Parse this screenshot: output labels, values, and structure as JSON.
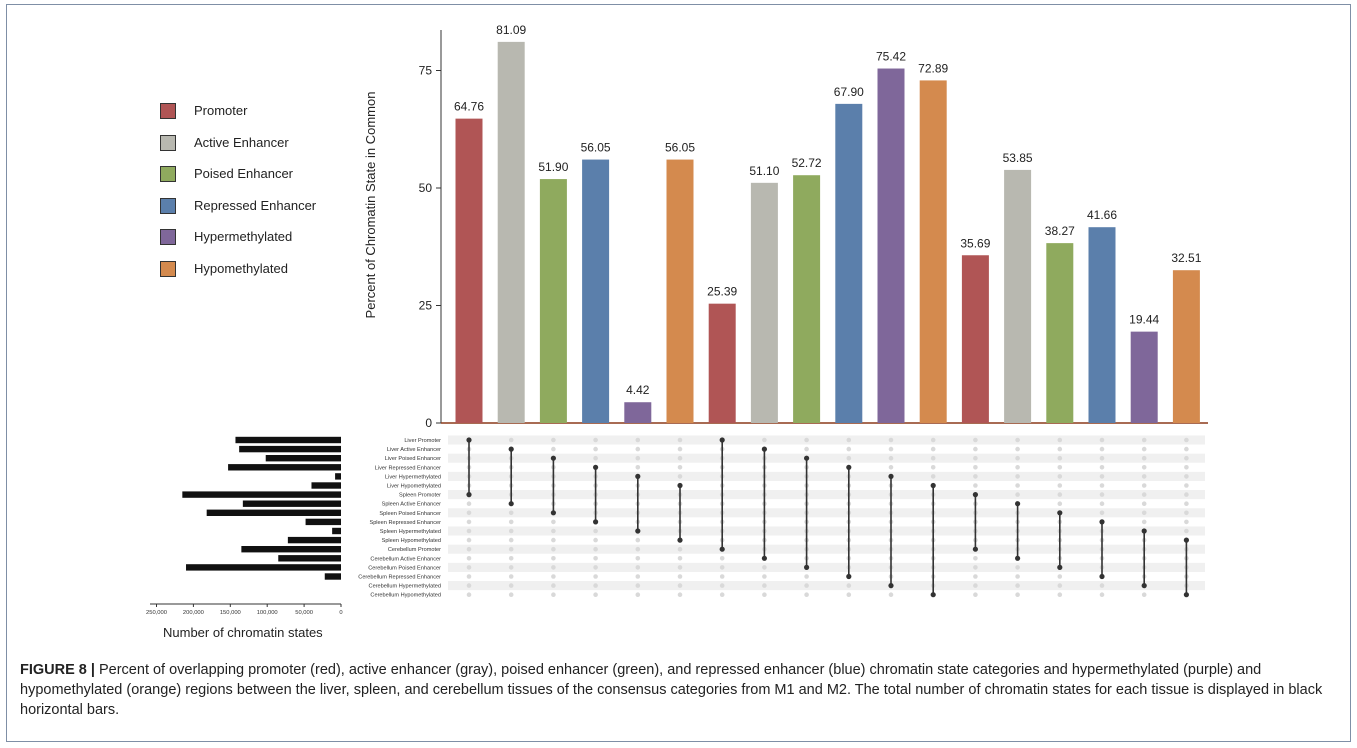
{
  "chart_data": {
    "type": "bar",
    "ylabel": "Percent of Chromatin State in Common",
    "yticks": [
      0,
      25,
      50,
      75
    ],
    "ylim": [
      0,
      85
    ],
    "legend": [
      {
        "name": "Promoter",
        "color": "#b05555"
      },
      {
        "name": "Active Enhancer",
        "color": "#b8b8b0"
      },
      {
        "name": "Poised Enhancer",
        "color": "#8faa5e"
      },
      {
        "name": "Repressed Enhancer",
        "color": "#5b7fab"
      },
      {
        "name": "Hypermethylated",
        "color": "#7f679a"
      },
      {
        "name": "Hypomethylated",
        "color": "#d48a4e"
      }
    ],
    "bars": [
      {
        "label": "64.76",
        "value": 64.76,
        "cat": 0,
        "sets": [
          0,
          6
        ]
      },
      {
        "label": "81.09",
        "value": 81.09,
        "cat": 1,
        "sets": [
          1,
          7
        ]
      },
      {
        "label": "51.90",
        "value": 51.9,
        "cat": 2,
        "sets": [
          2,
          8
        ]
      },
      {
        "label": "56.05",
        "value": 56.05,
        "cat": 3,
        "sets": [
          3,
          9
        ]
      },
      {
        "label": "4.42",
        "value": 4.42,
        "cat": 4,
        "sets": [
          4,
          10
        ]
      },
      {
        "label": "56.05",
        "value": 56.05,
        "cat": 5,
        "sets": [
          5,
          11
        ]
      },
      {
        "label": "25.39",
        "value": 25.39,
        "cat": 0,
        "sets": [
          0,
          12
        ]
      },
      {
        "label": "51.10",
        "value": 51.1,
        "cat": 1,
        "sets": [
          1,
          13
        ]
      },
      {
        "label": "52.72",
        "value": 52.72,
        "cat": 2,
        "sets": [
          2,
          14
        ]
      },
      {
        "label": "67.90",
        "value": 67.9,
        "cat": 3,
        "sets": [
          3,
          15
        ]
      },
      {
        "label": "75.42",
        "value": 75.42,
        "cat": 4,
        "sets": [
          4,
          16
        ]
      },
      {
        "label": "72.89",
        "value": 72.89,
        "cat": 5,
        "sets": [
          5,
          17
        ]
      },
      {
        "label": "35.69",
        "value": 35.69,
        "cat": 0,
        "sets": [
          6,
          12
        ]
      },
      {
        "label": "53.85",
        "value": 53.85,
        "cat": 1,
        "sets": [
          7,
          13
        ]
      },
      {
        "label": "38.27",
        "value": 38.27,
        "cat": 2,
        "sets": [
          8,
          14
        ]
      },
      {
        "label": "41.66",
        "value": 41.66,
        "cat": 3,
        "sets": [
          9,
          15
        ]
      },
      {
        "label": "19.44",
        "value": 19.44,
        "cat": 4,
        "sets": [
          10,
          16
        ]
      },
      {
        "label": "32.51",
        "value": 32.51,
        "cat": 5,
        "sets": [
          11,
          17
        ]
      }
    ],
    "sets": [
      {
        "name": "Liver Promoter",
        "count": 143000
      },
      {
        "name": "Liver Active Enhancer",
        "count": 138000
      },
      {
        "name": "Liver Poised Enhancer",
        "count": 102000
      },
      {
        "name": "Liver Repressed  Enhancer",
        "count": 153000
      },
      {
        "name": "Liver Hypermethylated",
        "count": 8000
      },
      {
        "name": "Liver Hypomethylated",
        "count": 40000
      },
      {
        "name": "Spleen Promoter",
        "count": 215000
      },
      {
        "name": "Spleen Active Enhancer",
        "count": 133000
      },
      {
        "name": "Spleen Poised Enhancer",
        "count": 182000
      },
      {
        "name": "Spleen Repressed  Enhancer",
        "count": 48000
      },
      {
        "name": "Spleen Hypermethylated",
        "count": 12000
      },
      {
        "name": "Spleen Hypomethylated",
        "count": 72000
      },
      {
        "name": "Cerebellum Promoter",
        "count": 135000
      },
      {
        "name": "Cerebellum Active Enhancer",
        "count": 85000
      },
      {
        "name": "Cerebellum Poised Enhancer",
        "count": 210000
      },
      {
        "name": "Cerebellum Repressed  Enhancer",
        "count": 22000
      },
      {
        "name": "Cerebellum Hypermethylated",
        "count": 0
      },
      {
        "name": "Cerebellum Hypomethylated",
        "count": 0
      }
    ],
    "hbar_xticks": [
      {
        "label": "250,000",
        "value": 250000
      },
      {
        "label": "200,000",
        "value": 200000
      },
      {
        "label": "150,000",
        "value": 150000
      },
      {
        "label": "100,000",
        "value": 100000
      },
      {
        "label": "50,000",
        "value": 50000
      },
      {
        "label": "0",
        "value": 0
      }
    ],
    "hbar_xlabel": "Number of chromatin states"
  },
  "caption": {
    "label": "FIGURE 8 |",
    "text": " Percent of overlapping promoter (red), active enhancer (gray), poised enhancer (green), and repressed enhancer (blue) chromatin state categories and hypermethylated (purple) and hypomethylated (orange) regions between the liver, spleen, and cerebellum tissues of the consensus categories from M1 and M2. The total number of chromatin states for each tissue is displayed in black horizontal bars."
  }
}
